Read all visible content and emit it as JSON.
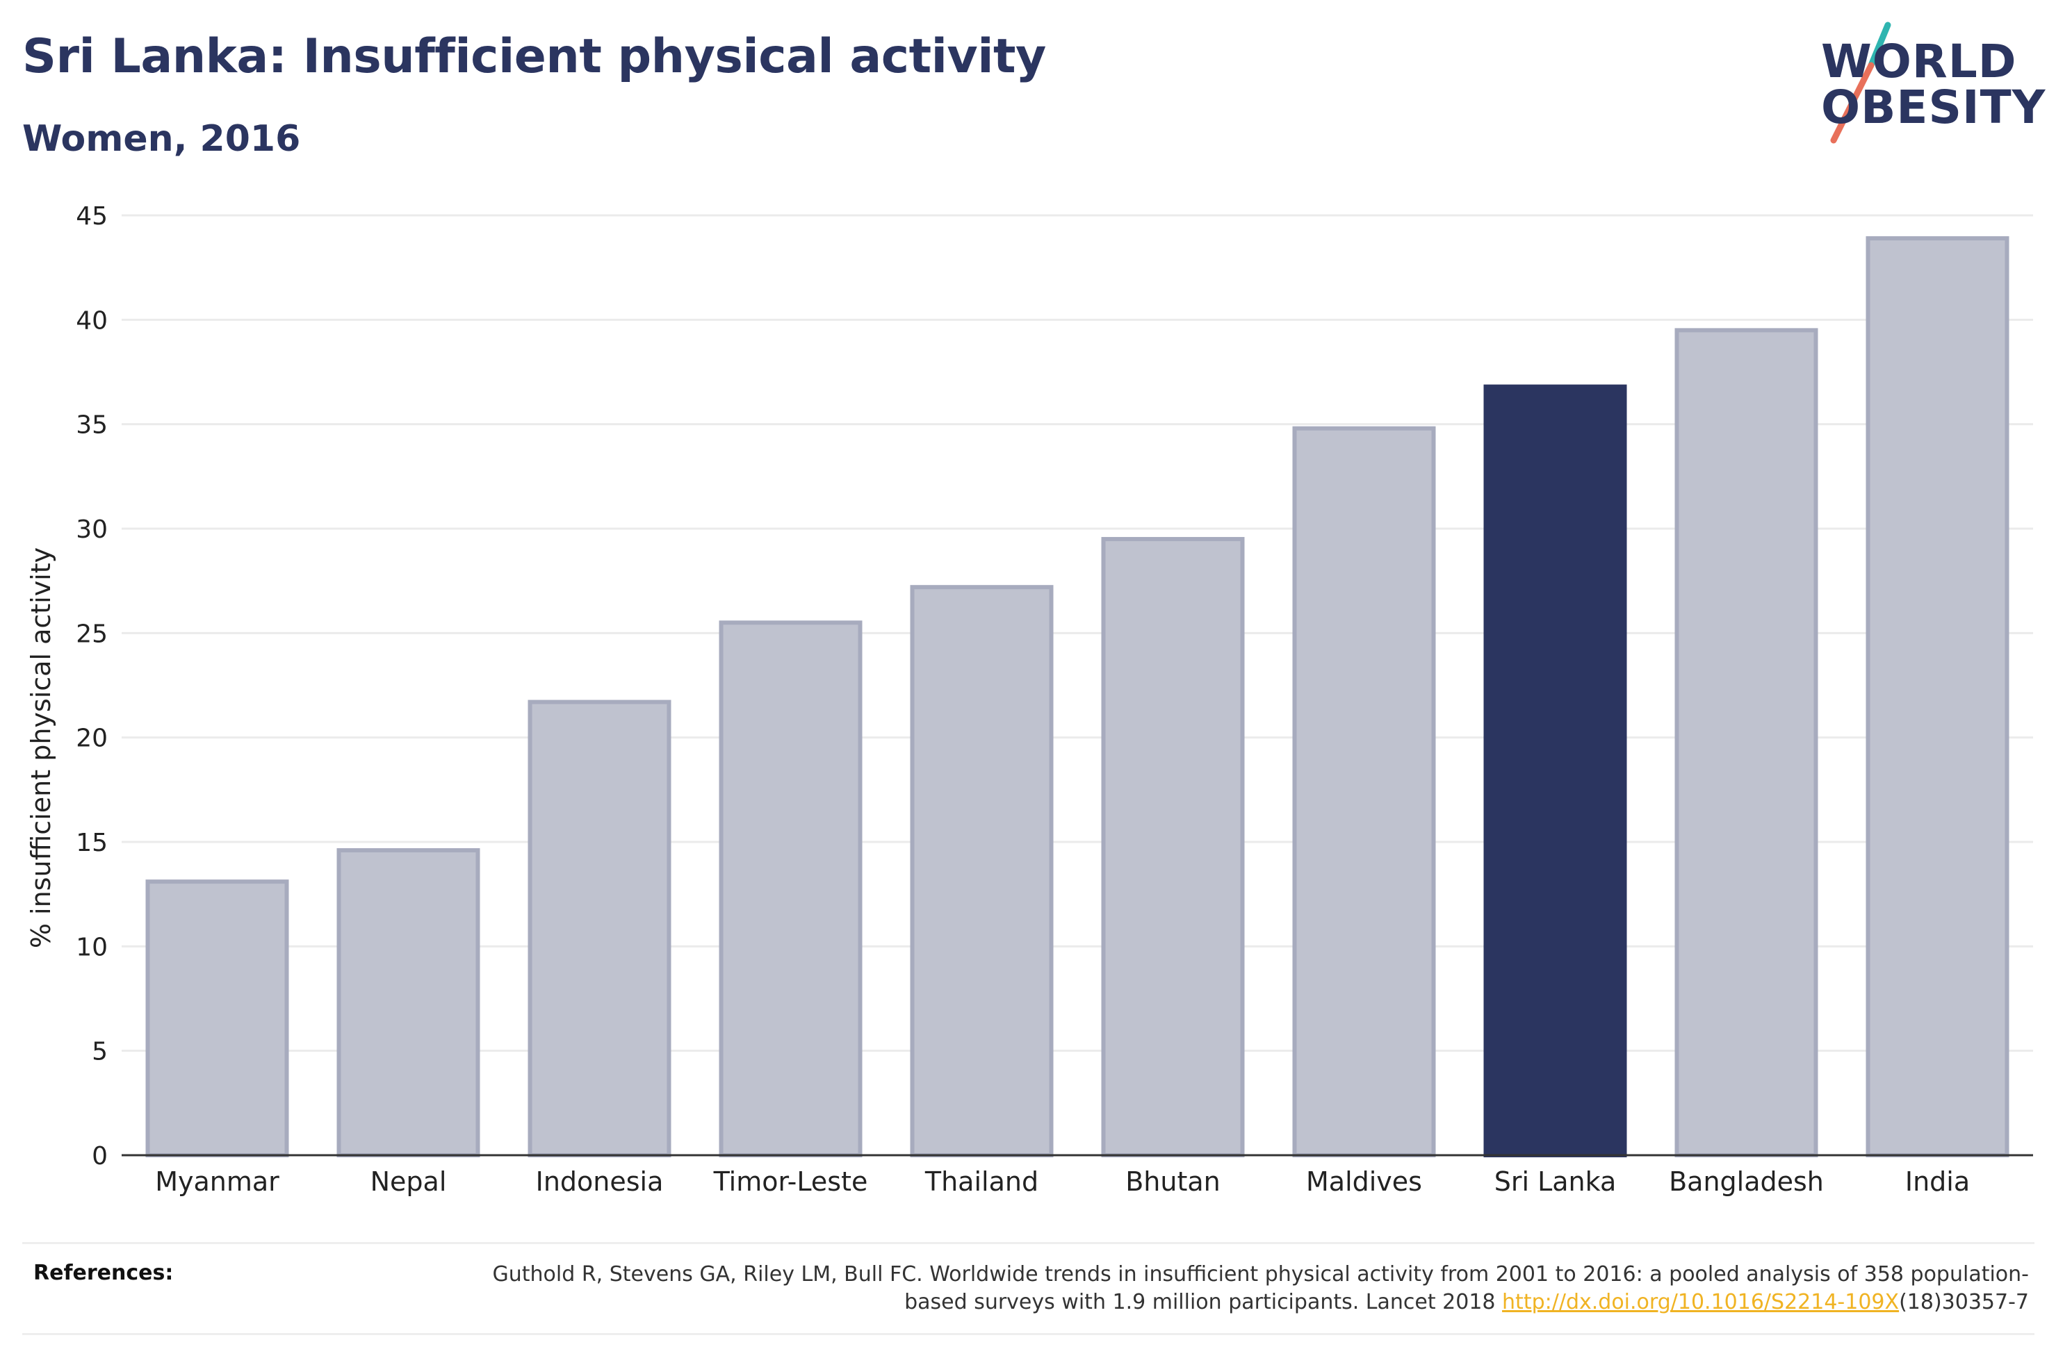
{
  "header": {
    "title": "Sri Lanka: Insufficient physical activity",
    "subtitle": "Women, 2016"
  },
  "logo": {
    "line1": "WORLD",
    "line2": "OBESITY",
    "colors": {
      "text": "#2b3560",
      "slash_top": "#2fb5b0",
      "slash_bottom": "#e8705a"
    }
  },
  "chart_data": {
    "type": "bar",
    "title": "Sri Lanka: Insufficient physical activity",
    "subtitle": "Women, 2016",
    "xlabel": "",
    "ylabel": "% insufficient physical activity",
    "ylim": [
      0,
      45
    ],
    "yticks": [
      0,
      5,
      10,
      15,
      20,
      25,
      30,
      35,
      40,
      45
    ],
    "grid": true,
    "categories": [
      "Myanmar",
      "Nepal",
      "Indonesia",
      "Timor-Leste",
      "Thailand",
      "Bhutan",
      "Maldives",
      "Sri Lanka",
      "Bangladesh",
      "India"
    ],
    "values": [
      13.1,
      14.6,
      21.7,
      25.5,
      27.2,
      29.5,
      34.8,
      36.8,
      39.5,
      43.9
    ],
    "highlight": "Sri Lanka",
    "colors": {
      "bar": "#bfc2cf",
      "bar_border": "#a7abbe",
      "highlight": "#2b3560",
      "grid": "#ebebeb",
      "axis": "#333333"
    }
  },
  "references": {
    "label": "References:",
    "text_before": "Guthold R, Stevens GA, Riley LM, Bull FC. Worldwide trends in insufficient physical activity from 2001 to 2016: a pooled analysis of 358 population-based surveys with 1.9 million participants. Lancet 2018 ",
    "link_text": "http://dx.doi.org/10.1016/S2214-109X",
    "text_after": "(18)30357-7"
  }
}
